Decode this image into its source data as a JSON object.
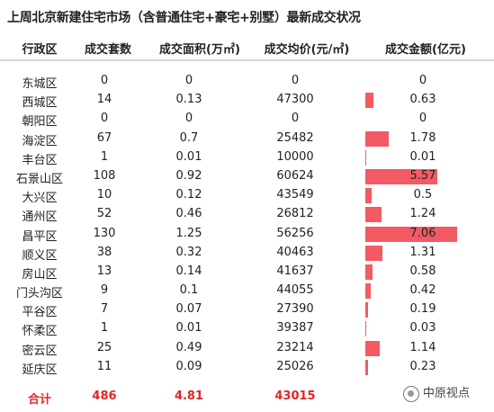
{
  "title": "上周北京新建住宅市场（含普通住宅+豪宅+别墅）最新成交状况",
  "headers": {
    "district": "行政区",
    "units": "成交套数",
    "area": "成交面积(万㎡)",
    "price": "成交均价(元/㎡)",
    "amount": "成交金额(亿元)"
  },
  "rows": [
    {
      "district": "东城区",
      "units": "0",
      "area": "0",
      "price": "0",
      "amount": "0",
      "amount_value": 0
    },
    {
      "district": "西城区",
      "units": "14",
      "area": "0.13",
      "price": "47300",
      "amount": "0.63",
      "amount_value": 0.63
    },
    {
      "district": "朝阳区",
      "units": "0",
      "area": "0",
      "price": "0",
      "amount": "0",
      "amount_value": 0
    },
    {
      "district": "海淀区",
      "units": "67",
      "area": "0.7",
      "price": "25482",
      "amount": "1.78",
      "amount_value": 1.78
    },
    {
      "district": "丰台区",
      "units": "1",
      "area": "0.01",
      "price": "10000",
      "amount": "0.01",
      "amount_value": 0.01
    },
    {
      "district": "石景山区",
      "units": "108",
      "area": "0.92",
      "price": "60624",
      "amount": "5.57",
      "amount_value": 5.57
    },
    {
      "district": "大兴区",
      "units": "10",
      "area": "0.12",
      "price": "43549",
      "amount": "0.5",
      "amount_value": 0.5
    },
    {
      "district": "通州区",
      "units": "52",
      "area": "0.46",
      "price": "26812",
      "amount": "1.24",
      "amount_value": 1.24
    },
    {
      "district": "昌平区",
      "units": "130",
      "area": "1.25",
      "price": "56256",
      "amount": "7.06",
      "amount_value": 7.06
    },
    {
      "district": "顺义区",
      "units": "38",
      "area": "0.32",
      "price": "40463",
      "amount": "1.31",
      "amount_value": 1.31
    },
    {
      "district": "房山区",
      "units": "13",
      "area": "0.14",
      "price": "41637",
      "amount": "0.58",
      "amount_value": 0.58
    },
    {
      "district": "门头沟区",
      "units": "9",
      "area": "0.1",
      "price": "44055",
      "amount": "0.42",
      "amount_value": 0.42
    },
    {
      "district": "平谷区",
      "units": "7",
      "area": "0.07",
      "price": "27390",
      "amount": "0.19",
      "amount_value": 0.19
    },
    {
      "district": "怀柔区",
      "units": "1",
      "area": "0.01",
      "price": "39387",
      "amount": "0.03",
      "amount_value": 0.03
    },
    {
      "district": "密云区",
      "units": "25",
      "area": "0.49",
      "price": "23214",
      "amount": "1.14",
      "amount_value": 1.14
    },
    {
      "district": "延庆区",
      "units": "11",
      "area": "0.09",
      "price": "25026",
      "amount": "0.23",
      "amount_value": 0.23
    }
  ],
  "total": {
    "label": "合计",
    "units": "486",
    "area": "4.81",
    "price": "43015"
  },
  "amount_max": 7.06,
  "bar_color": "#f35a64",
  "total_color": "#e52424",
  "watermark": {
    "icon": "wechat-channel-icon",
    "text": "中原视点"
  }
}
